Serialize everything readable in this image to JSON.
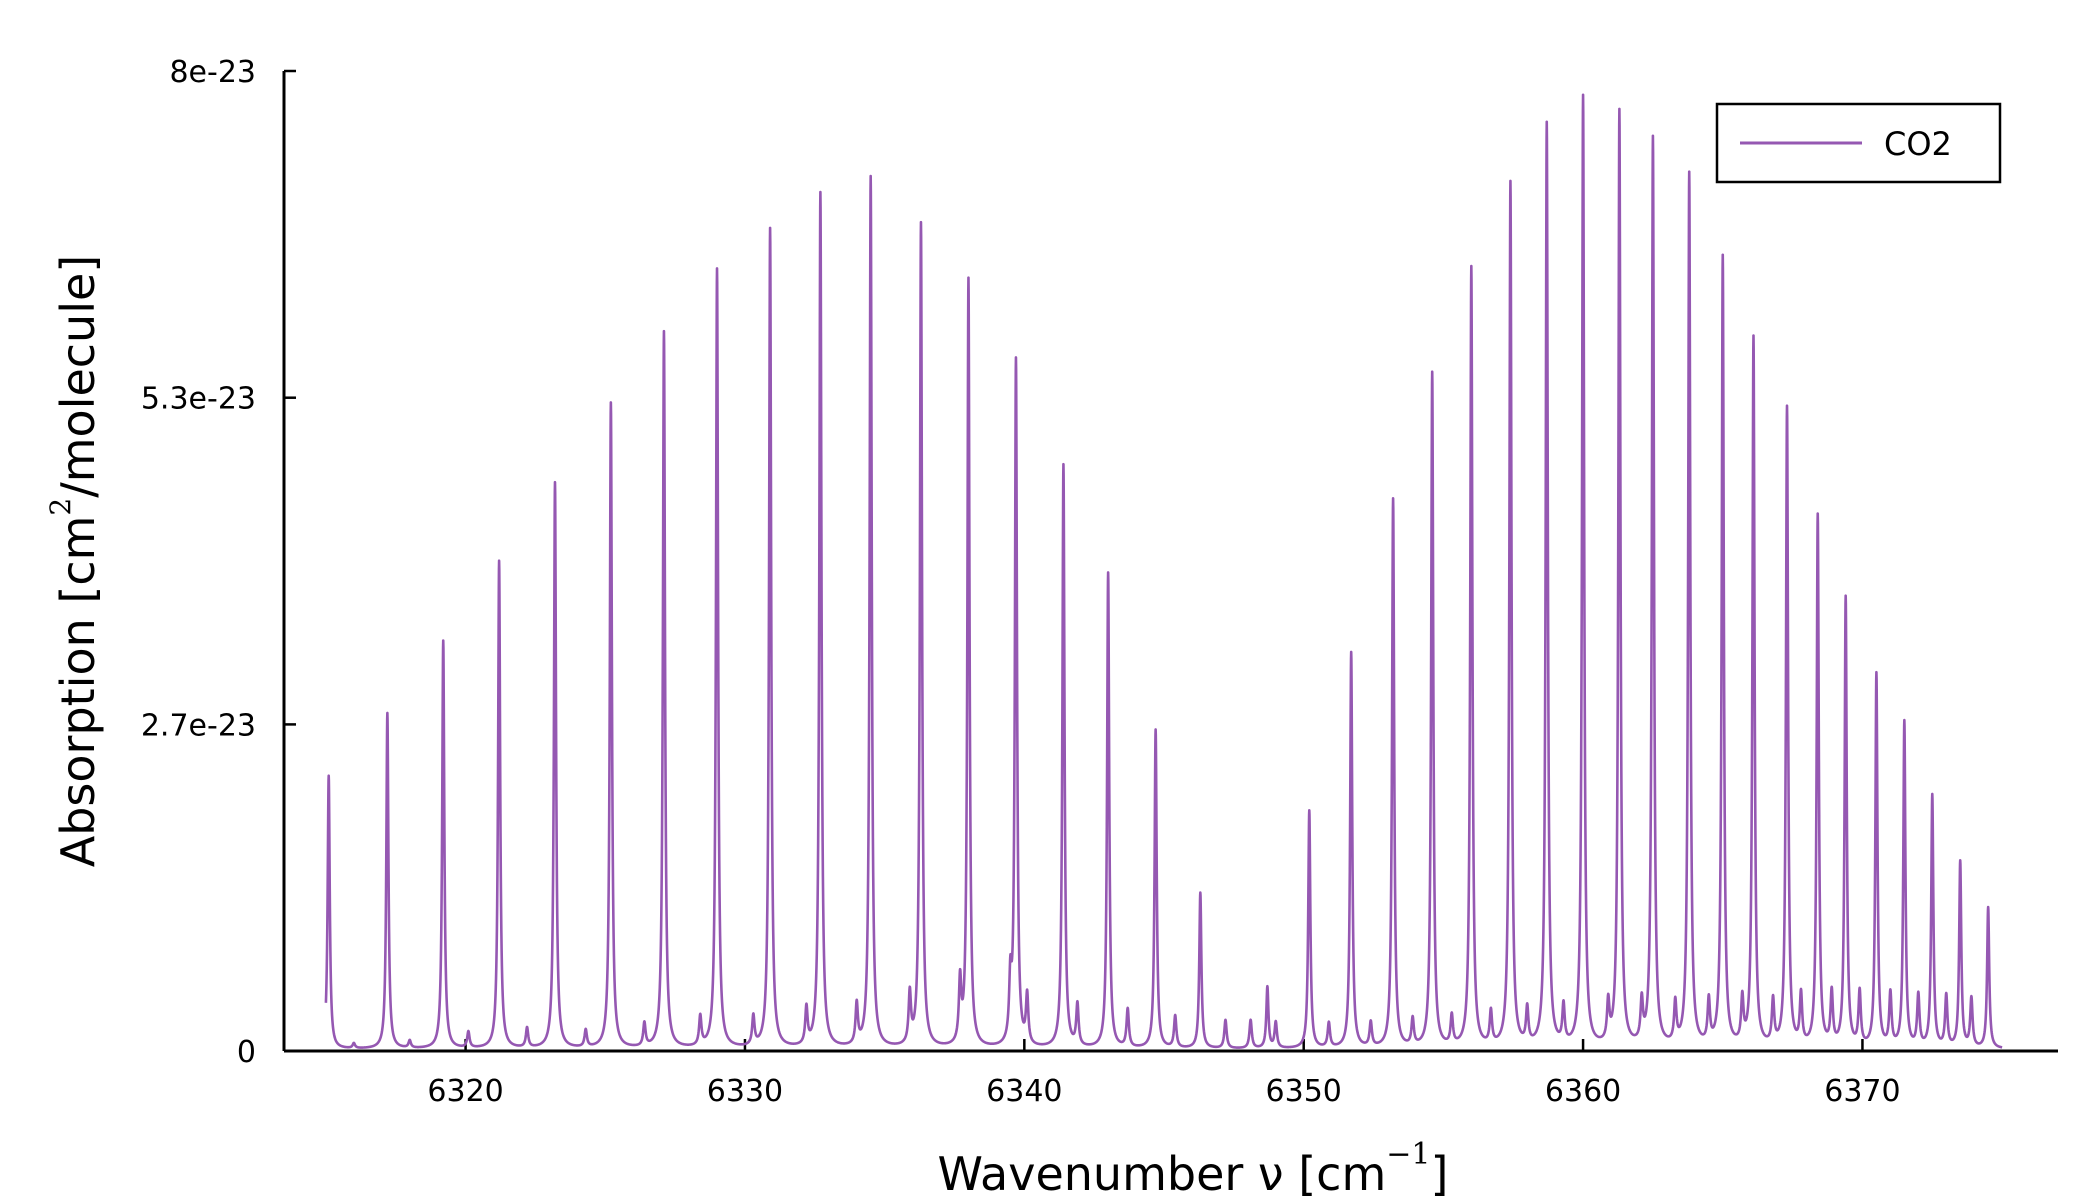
{
  "chart_data": {
    "type": "line",
    "title": "",
    "xlabel": {
      "text": "Wavenumber ν [cm",
      "superscript": "−1",
      "suffix": "]"
    },
    "ylabel": {
      "text": "Absorption [cm",
      "superscript": "2",
      "suffix": "/molecule]"
    },
    "xlim": [
      6313.5,
      6377
    ],
    "ylim": [
      0,
      8e-23
    ],
    "x_ticks": [
      6320,
      6330,
      6340,
      6350,
      6360,
      6370
    ],
    "x_tick_labels": [
      "6320",
      "6330",
      "6340",
      "6350",
      "6360",
      "6370"
    ],
    "y_ticks": [
      0,
      2.666e-23,
      5.333e-23,
      8e-23
    ],
    "y_tick_labels": [
      "0",
      "2.7e-23",
      "5.3e-23",
      "8e-23"
    ],
    "grid": false,
    "legend_position": "top-right",
    "line_color": "#9558b2",
    "x_range": [
      6315,
      6375
    ],
    "series": [
      {
        "name": "CO2",
        "color": "#9558b2",
        "baseline": 1.5e-25,
        "peaks": [
          {
            "x": 6315.1,
            "y": 2.23e-23
          },
          {
            "x": 6317.2,
            "y": 2.74e-23
          },
          {
            "x": 6319.2,
            "y": 3.33e-23
          },
          {
            "x": 6321.2,
            "y": 3.98e-23
          },
          {
            "x": 6323.2,
            "y": 4.62e-23
          },
          {
            "x": 6325.2,
            "y": 5.27e-23
          },
          {
            "x": 6327.1,
            "y": 5.85e-23
          },
          {
            "x": 6329.0,
            "y": 6.36e-23
          },
          {
            "x": 6330.9,
            "y": 6.69e-23
          },
          {
            "x": 6332.7,
            "y": 6.98e-23
          },
          {
            "x": 6334.5,
            "y": 7.11e-23
          },
          {
            "x": 6336.3,
            "y": 6.73e-23
          },
          {
            "x": 6338.0,
            "y": 6.27e-23
          },
          {
            "x": 6339.7,
            "y": 5.6e-23
          },
          {
            "x": 6341.4,
            "y": 4.76e-23
          },
          {
            "x": 6343.0,
            "y": 3.88e-23
          },
          {
            "x": 6344.7,
            "y": 2.6e-23
          },
          {
            "x": 6346.3,
            "y": 1.27e-23
          },
          {
            "x": 6348.7,
            "y": 5e-24
          },
          {
            "x": 6350.2,
            "y": 1.94e-23
          },
          {
            "x": 6351.7,
            "y": 3.23e-23
          },
          {
            "x": 6353.2,
            "y": 4.48e-23
          },
          {
            "x": 6354.6,
            "y": 5.51e-23
          },
          {
            "x": 6356.0,
            "y": 6.37e-23
          },
          {
            "x": 6357.4,
            "y": 7.06e-23
          },
          {
            "x": 6358.7,
            "y": 7.54e-23
          },
          {
            "x": 6360.0,
            "y": 7.76e-23
          },
          {
            "x": 6361.3,
            "y": 7.64e-23
          },
          {
            "x": 6362.5,
            "y": 7.42e-23
          },
          {
            "x": 6363.8,
            "y": 7.13e-23
          },
          {
            "x": 6365.0,
            "y": 6.45e-23
          },
          {
            "x": 6366.1,
            "y": 5.79e-23
          },
          {
            "x": 6367.3,
            "y": 5.22e-23
          },
          {
            "x": 6368.4,
            "y": 4.34e-23
          },
          {
            "x": 6369.4,
            "y": 3.67e-23
          },
          {
            "x": 6370.5,
            "y": 3.05e-23
          },
          {
            "x": 6371.5,
            "y": 2.66e-23
          },
          {
            "x": 6372.5,
            "y": 2.06e-23
          },
          {
            "x": 6373.5,
            "y": 1.52e-23
          },
          {
            "x": 6374.5,
            "y": 1.15e-23
          }
        ],
        "minor_peaks": [
          {
            "x": 6316.0,
            "y": 4e-25
          },
          {
            "x": 6318.0,
            "y": 6e-25
          },
          {
            "x": 6320.1,
            "y": 1.3e-24
          },
          {
            "x": 6322.2,
            "y": 1.6e-24
          },
          {
            "x": 6324.3,
            "y": 1.4e-24
          },
          {
            "x": 6326.4,
            "y": 1.9e-24
          },
          {
            "x": 6328.4,
            "y": 2.4e-24
          },
          {
            "x": 6330.3,
            "y": 2.4e-24
          },
          {
            "x": 6332.2,
            "y": 3e-24
          },
          {
            "x": 6334.0,
            "y": 3.3e-24
          },
          {
            "x": 6335.9,
            "y": 4.1e-24
          },
          {
            "x": 6337.7,
            "y": 5e-24
          },
          {
            "x": 6339.5,
            "y": 4.8e-24
          },
          {
            "x": 6340.1,
            "y": 4e-24
          },
          {
            "x": 6341.9,
            "y": 3.4e-24
          },
          {
            "x": 6343.7,
            "y": 3.1e-24
          },
          {
            "x": 6345.4,
            "y": 2.6e-24
          },
          {
            "x": 6347.2,
            "y": 2.3e-24
          },
          {
            "x": 6348.1,
            "y": 2.3e-24
          },
          {
            "x": 6349.0,
            "y": 2.1e-24
          },
          {
            "x": 6350.9,
            "y": 2e-24
          },
          {
            "x": 6352.4,
            "y": 2e-24
          },
          {
            "x": 6353.9,
            "y": 2.2e-24
          },
          {
            "x": 6355.3,
            "y": 2.4e-24
          },
          {
            "x": 6356.7,
            "y": 2.7e-24
          },
          {
            "x": 6358.0,
            "y": 2.9e-24
          },
          {
            "x": 6359.3,
            "y": 3.1e-24
          },
          {
            "x": 6360.9,
            "y": 3.2e-24
          },
          {
            "x": 6362.1,
            "y": 3.3e-24
          },
          {
            "x": 6363.3,
            "y": 3.3e-24
          },
          {
            "x": 6364.5,
            "y": 3.5e-24
          },
          {
            "x": 6365.7,
            "y": 3.6e-24
          },
          {
            "x": 6366.8,
            "y": 3.6e-24
          },
          {
            "x": 6367.8,
            "y": 4.1e-24
          },
          {
            "x": 6368.9,
            "y": 4.3e-24
          },
          {
            "x": 6369.9,
            "y": 4.4e-24
          },
          {
            "x": 6371.0,
            "y": 4.3e-24
          },
          {
            "x": 6372.0,
            "y": 4.2e-24
          },
          {
            "x": 6373.0,
            "y": 4.2e-24
          },
          {
            "x": 6373.9,
            "y": 4e-24
          }
        ]
      }
    ]
  }
}
